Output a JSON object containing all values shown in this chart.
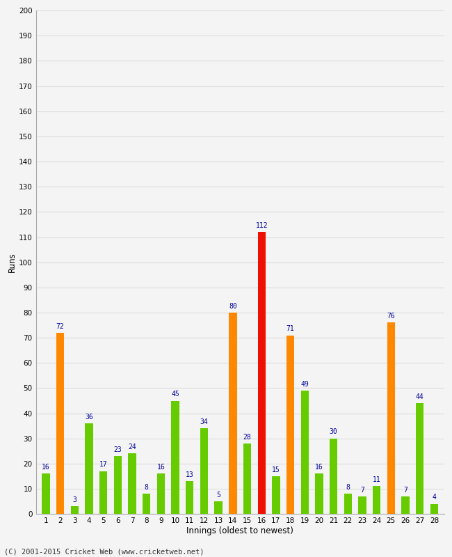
{
  "innings": [
    1,
    2,
    3,
    4,
    5,
    6,
    7,
    8,
    9,
    10,
    11,
    12,
    13,
    14,
    15,
    16,
    17,
    18,
    19,
    20,
    21,
    22,
    23,
    24,
    25,
    26,
    27,
    28
  ],
  "values": [
    16,
    72,
    3,
    36,
    17,
    23,
    24,
    8,
    16,
    45,
    13,
    34,
    5,
    80,
    28,
    112,
    15,
    71,
    49,
    16,
    30,
    8,
    7,
    11,
    76,
    7,
    44,
    4
  ],
  "colors": [
    "#66cc00",
    "#ff8800",
    "#66cc00",
    "#66cc00",
    "#66cc00",
    "#66cc00",
    "#66cc00",
    "#66cc00",
    "#66cc00",
    "#66cc00",
    "#66cc00",
    "#66cc00",
    "#66cc00",
    "#ff8800",
    "#66cc00",
    "#ee1100",
    "#66cc00",
    "#ff8800",
    "#66cc00",
    "#66cc00",
    "#66cc00",
    "#66cc00",
    "#66cc00",
    "#66cc00",
    "#ff8800",
    "#66cc00",
    "#66cc00",
    "#66cc00"
  ],
  "xlabel": "Innings (oldest to newest)",
  "ylabel": "Runs",
  "ylim": [
    0,
    200
  ],
  "yticks": [
    0,
    10,
    20,
    30,
    40,
    50,
    60,
    70,
    80,
    90,
    100,
    110,
    120,
    130,
    140,
    150,
    160,
    170,
    180,
    190,
    200
  ],
  "footnote": "(C) 2001-2015 Cricket Web (www.cricketweb.net)",
  "label_color": "#000099",
  "background_color": "#f4f4f4",
  "grid_color": "#dddddd",
  "bar_width": 0.55
}
